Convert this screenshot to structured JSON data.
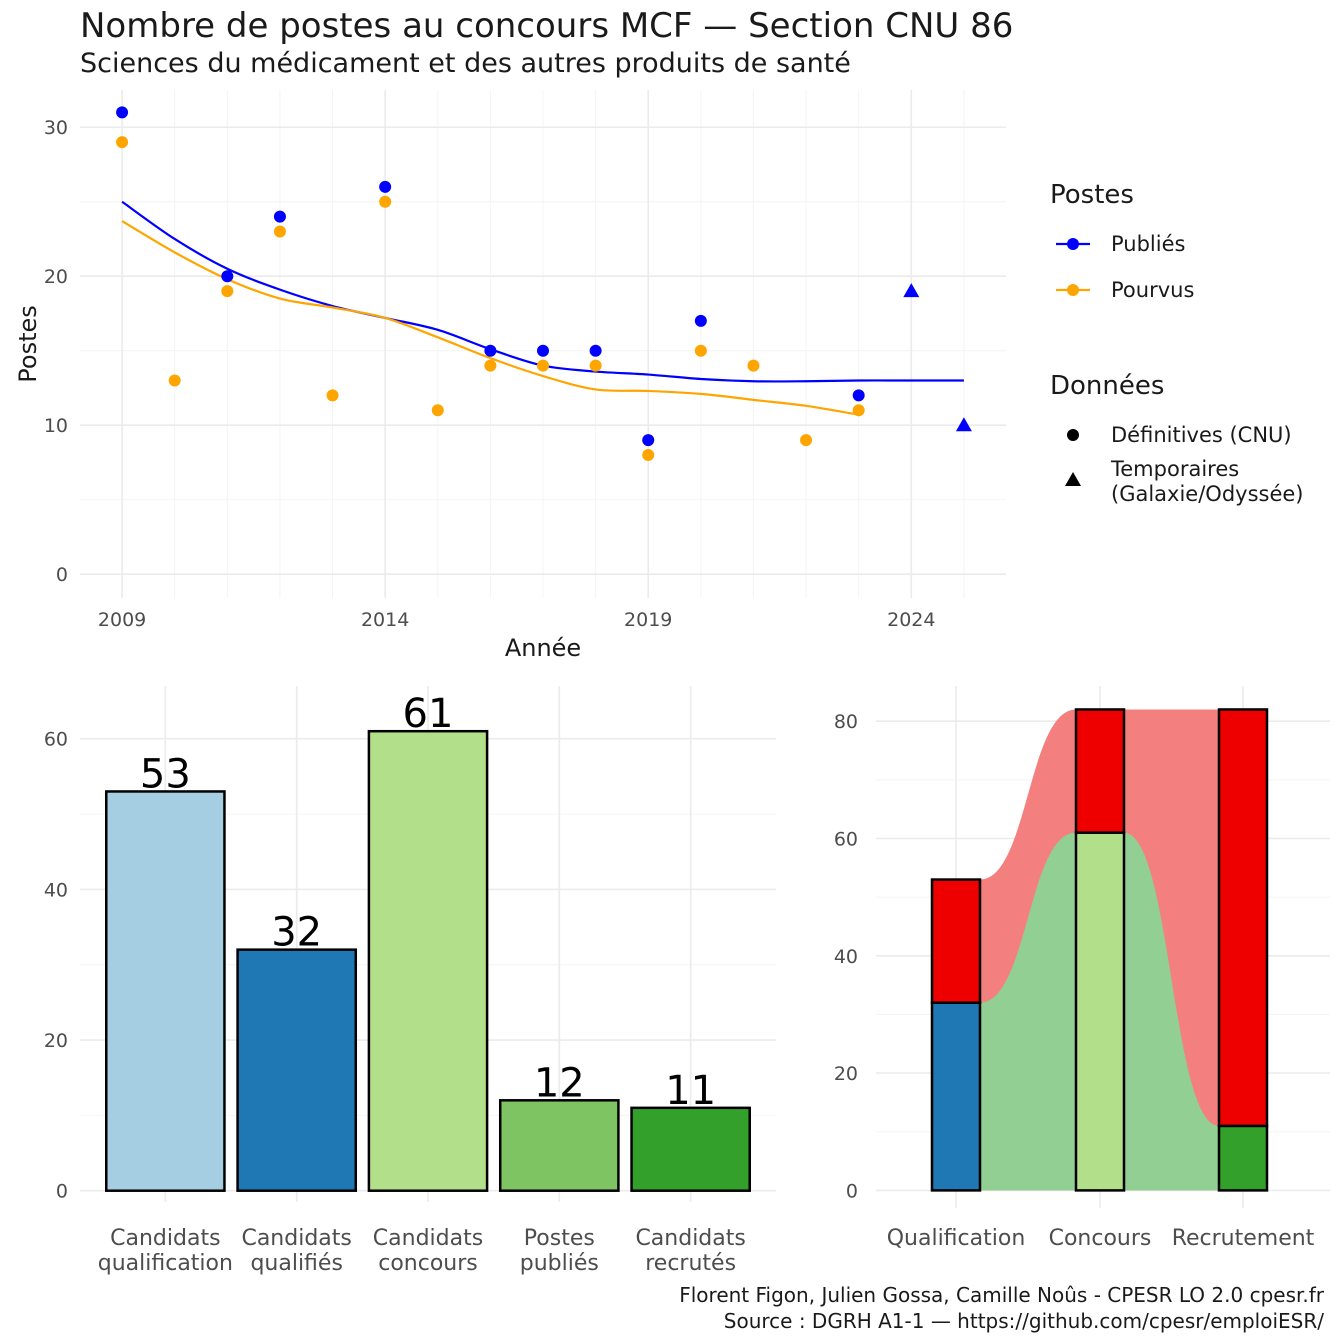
{
  "title": "Nombre de postes au concours MCF —  Section CNU 86",
  "subtitle": "Sciences du médicament et des autres produits de santé",
  "caption": {
    "line1": "Florent Figon, Julien Gossa, Camille Noûs - CPESR LO 2.0 cpesr.fr",
    "line2": "Source : DGRH A1-1 — https://github.com/cpesr/emploiESR/"
  },
  "colors": {
    "publies": "#0000ff",
    "pourvus": "#ffa500",
    "bar_fills": [
      "#a6cee3",
      "#1f78b4",
      "#b2df8a",
      "#7fc462",
      "#33a02c"
    ],
    "flow_red_fill": "#f47f7f",
    "flow_green_fill": "#92cf93",
    "stack_red": "#ee0000"
  },
  "chart_data": [
    {
      "type": "scatter",
      "xlabel": "Année",
      "ylabel": "Postes",
      "xlim": [
        2008.2,
        2025.8
      ],
      "ylim": [
        -1.6,
        32.5
      ],
      "xticks": [
        2009,
        2014,
        2019,
        2024
      ],
      "yticks": [
        0,
        10,
        20,
        30
      ],
      "grid": true,
      "legend_position": "right",
      "legend": {
        "color_title": "Postes",
        "color_items": [
          "Publiés",
          "Pourvus"
        ],
        "shape_title": "Données",
        "shape_items": [
          {
            "shape": "circle",
            "label": "Définitives (CNU)"
          },
          {
            "shape": "triangle",
            "label": "Temporaires\n(Galaxie/Odyssée)"
          }
        ]
      },
      "series": [
        {
          "name": "Publiés",
          "color": "#0000ff",
          "points": [
            {
              "x": 2009,
              "y": 31,
              "shape": "circle"
            },
            {
              "x": 2011,
              "y": 20,
              "shape": "circle"
            },
            {
              "x": 2012,
              "y": 24,
              "shape": "circle"
            },
            {
              "x": 2014,
              "y": 26,
              "shape": "circle"
            },
            {
              "x": 2016,
              "y": 15,
              "shape": "circle"
            },
            {
              "x": 2017,
              "y": 15,
              "shape": "circle"
            },
            {
              "x": 2018,
              "y": 15,
              "shape": "circle"
            },
            {
              "x": 2019,
              "y": 9,
              "shape": "circle"
            },
            {
              "x": 2020,
              "y": 17,
              "shape": "circle"
            },
            {
              "x": 2023,
              "y": 12,
              "shape": "circle"
            },
            {
              "x": 2024,
              "y": 19,
              "shape": "triangle"
            },
            {
              "x": 2025,
              "y": 10,
              "shape": "triangle"
            }
          ],
          "smooth": [
            [
              2009,
              25.0
            ],
            [
              2010,
              22.5
            ],
            [
              2011,
              20.5
            ],
            [
              2012,
              19.1
            ],
            [
              2013,
              18.0
            ],
            [
              2014,
              17.2
            ],
            [
              2015,
              16.4
            ],
            [
              2016,
              15.1
            ],
            [
              2017,
              14.0
            ],
            [
              2018,
              13.6
            ],
            [
              2019,
              13.4
            ],
            [
              2020,
              13.1
            ],
            [
              2021,
              12.95
            ],
            [
              2022,
              12.95
            ],
            [
              2023,
              13.0
            ],
            [
              2024,
              13.0
            ],
            [
              2025,
              13.0
            ]
          ]
        },
        {
          "name": "Pourvus",
          "color": "#ffa500",
          "points": [
            {
              "x": 2009,
              "y": 29,
              "shape": "circle"
            },
            {
              "x": 2010,
              "y": 13,
              "shape": "circle"
            },
            {
              "x": 2011,
              "y": 19,
              "shape": "circle"
            },
            {
              "x": 2012,
              "y": 23,
              "shape": "circle"
            },
            {
              "x": 2013,
              "y": 12,
              "shape": "circle"
            },
            {
              "x": 2014,
              "y": 25,
              "shape": "circle"
            },
            {
              "x": 2015,
              "y": 11,
              "shape": "circle"
            },
            {
              "x": 2016,
              "y": 14,
              "shape": "circle"
            },
            {
              "x": 2017,
              "y": 14,
              "shape": "circle"
            },
            {
              "x": 2018,
              "y": 14,
              "shape": "circle"
            },
            {
              "x": 2019,
              "y": 8,
              "shape": "circle"
            },
            {
              "x": 2020,
              "y": 15,
              "shape": "circle"
            },
            {
              "x": 2021,
              "y": 14,
              "shape": "circle"
            },
            {
              "x": 2022,
              "y": 9,
              "shape": "circle"
            },
            {
              "x": 2023,
              "y": 11,
              "shape": "circle"
            }
          ],
          "smooth": [
            [
              2009,
              23.7
            ],
            [
              2010,
              21.6
            ],
            [
              2011,
              19.8
            ],
            [
              2012,
              18.5
            ],
            [
              2013,
              17.9
            ],
            [
              2014,
              17.2
            ],
            [
              2015,
              15.9
            ],
            [
              2016,
              14.5
            ],
            [
              2017,
              13.3
            ],
            [
              2018,
              12.4
            ],
            [
              2019,
              12.3
            ],
            [
              2020,
              12.1
            ],
            [
              2021,
              11.7
            ],
            [
              2022,
              11.3
            ],
            [
              2023,
              10.7
            ]
          ]
        }
      ]
    },
    {
      "type": "bar",
      "categories": [
        "Candidats\nqualification",
        "Candidats\nqualifiés",
        "Candidats\nconcours",
        "Postes\npubliés",
        "Candidats\nrecrutés"
      ],
      "values": [
        53,
        32,
        61,
        12,
        11
      ],
      "ylim": [
        -1.5,
        67
      ],
      "yticks": [
        0,
        20,
        40,
        60
      ],
      "grid": true
    },
    {
      "type": "bar",
      "stacked": true,
      "categories": [
        "Qualification",
        "Concours",
        "Recrutement"
      ],
      "series": [
        {
          "name": "",
          "values": [
            32,
            61,
            11
          ],
          "colors": [
            "#1f78b4",
            "#b2df8a",
            "#33a02c"
          ]
        },
        {
          "name": "",
          "values": [
            21,
            21,
            71
          ],
          "colors": [
            "#ee0000",
            "#ee0000",
            "#ee0000"
          ]
        }
      ],
      "totals": [
        53,
        82,
        82
      ],
      "ylim": [
        -3,
        86
      ],
      "yticks": [
        0,
        20,
        40,
        60,
        80
      ],
      "grid": true
    }
  ]
}
